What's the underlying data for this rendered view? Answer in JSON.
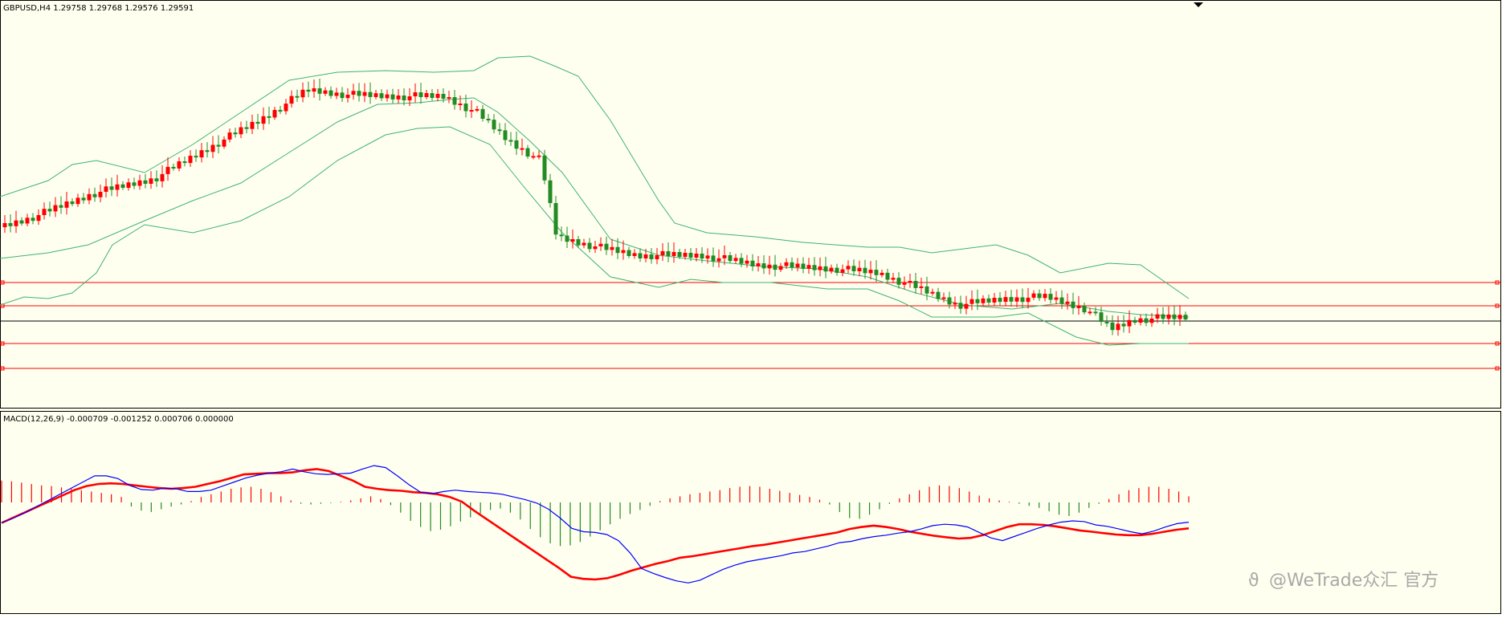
{
  "colors": {
    "background": "#fffff0",
    "frame": "#000000",
    "bull_candle": "#ff0000",
    "bear_candle": "#238b23",
    "bands": "#3cb371",
    "level_lines": "#ff0000",
    "current_price_line": "#000000",
    "macd_line": "#0000ff",
    "signal_line": "#ff0000",
    "hist_pos": "#ff0000",
    "hist_neg": "#228b22"
  },
  "chart_data": [
    {
      "type": "candlestick",
      "title": "GBPUSD,H4  1.29758 1.29768 1.29576 1.29591",
      "symbol": "GBPUSD",
      "timeframe": "H4",
      "last_bar": {
        "open": 1.29758,
        "high": 1.29768,
        "low": 1.29576,
        "close": 1.29591
      },
      "indicators": [
        "Bollinger Bands"
      ],
      "horizontal_levels_shown": 5,
      "ylim": [
        0,
        100
      ],
      "grid": false
    },
    {
      "type": "line",
      "title": "MACD(12,26,9) -0.000709 -0.001252 0.000706 0.000000",
      "series": [
        {
          "values": [
            -3.0,
            -2.3,
            -1.5,
            -0.6,
            0.3,
            1.2,
            2.1,
            3.0,
            3.9,
            3.9,
            3.5,
            2.5,
            1.9,
            1.8,
            2.1,
            2.0,
            1.6,
            1.6,
            1.8,
            2.4,
            3.0,
            3.6,
            4.0,
            4.3,
            4.5,
            4.9,
            4.5,
            4.2,
            4.1,
            4.2,
            4.3,
            4.9,
            5.4,
            5.1,
            3.9,
            2.6,
            1.5,
            1.3,
            1.6,
            1.8,
            1.6,
            1.5,
            1.4,
            1.2,
            0.8,
            0.4,
            -0.1,
            -1.0,
            -2.3,
            -3.8,
            -4.3,
            -4.4,
            -4.7,
            -5.6,
            -7.4,
            -9.7,
            -10.4,
            -11.0,
            -11.5,
            -11.8,
            -11.4,
            -10.6,
            -9.8,
            -9.2,
            -8.7,
            -8.4,
            -8.1,
            -7.8,
            -7.4,
            -7.2,
            -6.8,
            -6.4,
            -5.9,
            -5.7,
            -5.3,
            -5.0,
            -4.8,
            -4.5,
            -4.3,
            -3.9,
            -3.4,
            -3.2,
            -3.3,
            -3.6,
            -4.4,
            -5.2,
            -5.6,
            -5.0,
            -4.4,
            -3.8,
            -3.3,
            -2.9,
            -2.7,
            -2.8,
            -3.3,
            -3.5,
            -3.9,
            -4.3,
            -4.6,
            -4.2,
            -3.6,
            -3.1,
            -2.9
          ]
        },
        {
          "values": [
            -3.0,
            -2.2,
            -1.4,
            -0.6,
            0.2,
            1.0,
            1.8,
            2.4,
            2.7,
            2.8,
            2.7,
            2.5,
            2.3,
            2.1,
            2.0,
            2.1,
            2.3,
            2.7,
            3.1,
            3.6,
            4.1,
            4.2,
            4.3,
            4.3,
            4.4,
            4.7,
            4.9,
            4.6,
            3.9,
            3.2,
            2.3,
            2.0,
            1.8,
            1.7,
            1.5,
            1.4,
            1.2,
            0.8,
            0.1,
            -1.2,
            -2.4,
            -3.6,
            -4.8,
            -6.0,
            -7.2,
            -8.4,
            -9.6,
            -10.9,
            -11.2,
            -11.3,
            -11.1,
            -10.6,
            -10.0,
            -9.5,
            -9.0,
            -8.6,
            -8.1,
            -7.9,
            -7.6,
            -7.3,
            -7.0,
            -6.7,
            -6.4,
            -6.2,
            -5.9,
            -5.6,
            -5.3,
            -5.0,
            -4.7,
            -4.4,
            -3.9,
            -3.6,
            -3.4,
            -3.6,
            -3.9,
            -4.3,
            -4.6,
            -4.9,
            -5.1,
            -5.3,
            -5.2,
            -4.8,
            -4.2,
            -3.6,
            -3.2,
            -3.2,
            -3.3,
            -3.5,
            -3.8,
            -4.1,
            -4.3,
            -4.5,
            -4.7,
            -4.8,
            -4.8,
            -4.6,
            -4.3,
            -4.0,
            -3.8
          ]
        },
        {
          "values": [
            3.2,
            3.1,
            2.9,
            2.7,
            2.5,
            2.4,
            2.2,
            2.0,
            1.8,
            1.6,
            1.4,
            1.2,
            0.8,
            -0.6,
            -1.2,
            -1.4,
            -1.0,
            -0.6,
            -0.3,
            0.2,
            0.8,
            1.2,
            1.6,
            2.0,
            2.2,
            2.3,
            2.0,
            1.5,
            0.9,
            0.3,
            -0.2,
            -0.3,
            -0.2,
            -0.1,
            0.1,
            0.3,
            0.6,
            0.9,
            0.5,
            -0.4,
            -1.5,
            -2.7,
            -3.6,
            -4.2,
            -4.0,
            -3.5,
            -2.8,
            -2.2,
            -1.6,
            -1.1,
            -0.9,
            -1.5,
            -2.5,
            -3.9,
            -5.1,
            -6.0,
            -6.4,
            -6.3,
            -5.8,
            -5.0,
            -4.1,
            -3.2,
            -2.4,
            -1.7,
            -1.1,
            -0.5,
            0.2,
            0.6,
            0.9,
            1.2,
            1.4,
            1.6,
            1.8,
            2.1,
            2.3,
            2.4,
            2.3,
            2.0,
            1.7,
            1.4,
            1.1,
            0.8,
            0.4,
            -0.3,
            -1.4,
            -2.3,
            -2.4,
            -1.8,
            -1.0,
            -0.2,
            0.6,
            1.2,
            1.8,
            2.3,
            2.5,
            2.4,
            2.1,
            1.6,
            1.0,
            0.6,
            0.3,
            0.1,
            -0.2,
            -0.5,
            -0.8,
            -1.3,
            -1.8,
            -2.0,
            -1.5,
            -0.8,
            -0.2,
            0.5,
            1.2,
            1.8,
            2.1,
            2.3,
            2.3,
            2.0,
            1.6,
            0.9
          ]
        }
      ],
      "grid": false
    }
  ],
  "watermark": "@WeTrade众汇 官方"
}
